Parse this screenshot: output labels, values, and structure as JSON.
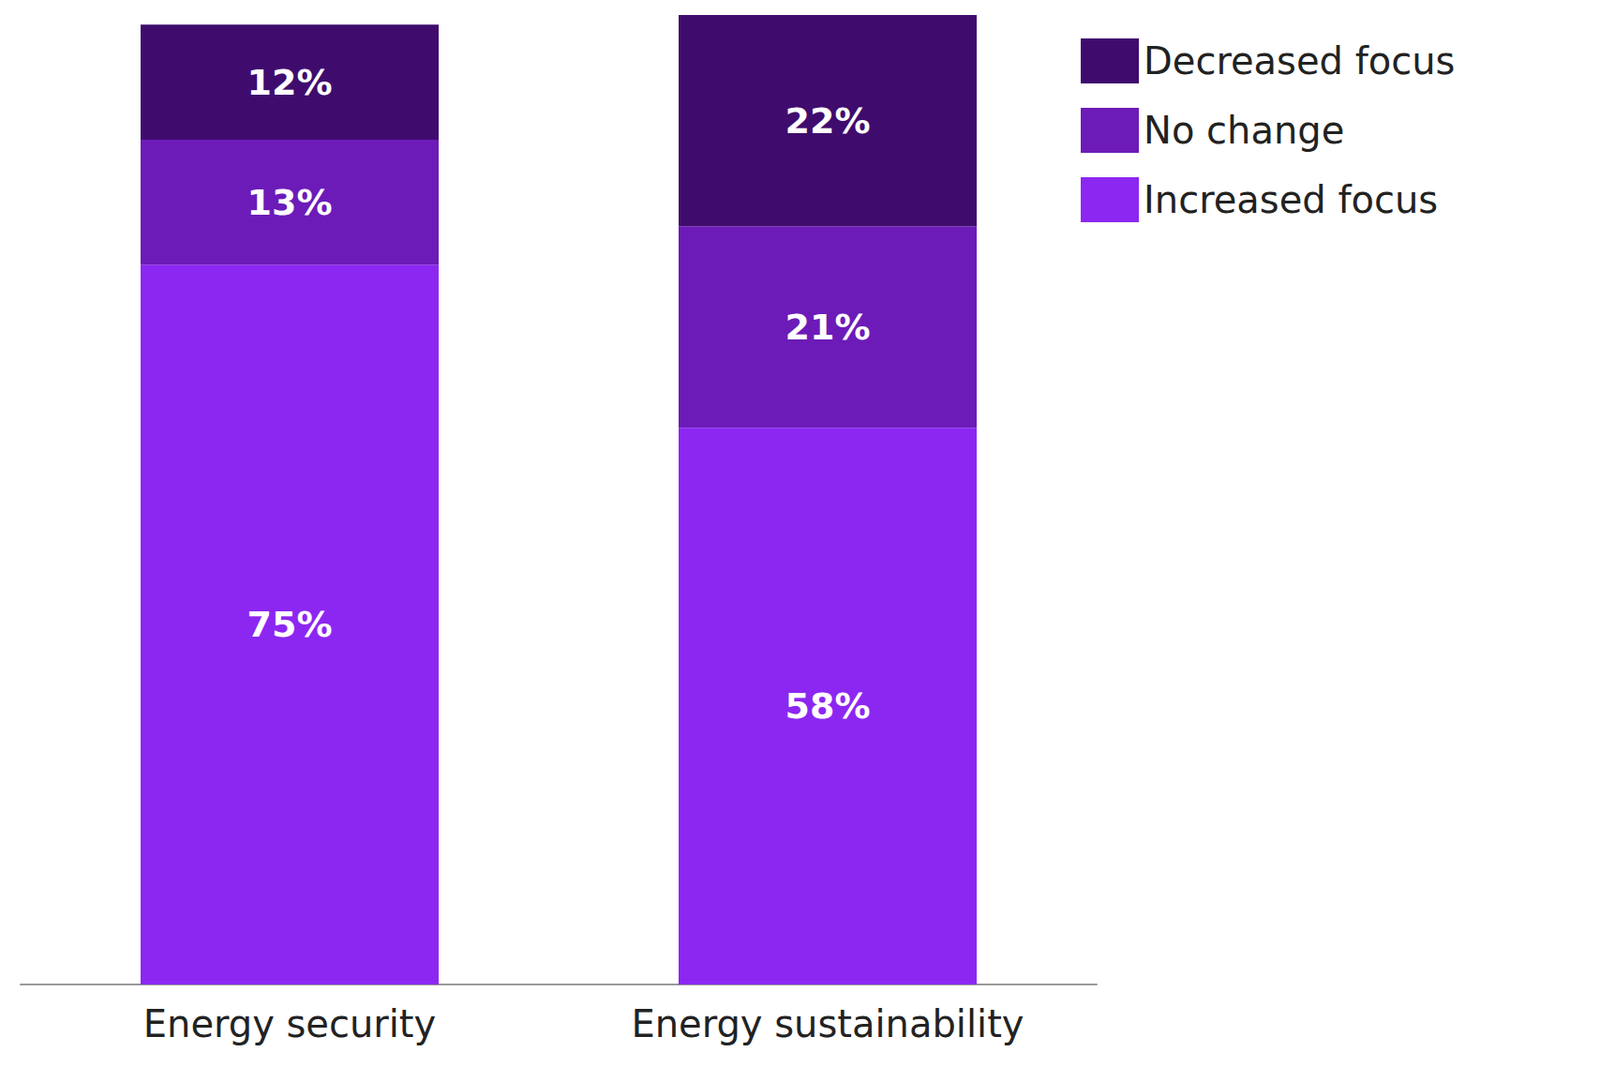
{
  "chart_data": {
    "type": "bar",
    "stacked": true,
    "data_labels": true,
    "tick_labels": "x",
    "legend": "top-right",
    "categories": [
      "Energy security",
      "Energy sustainability"
    ],
    "series": [
      {
        "name": "Increased focus",
        "color": "#8c27f2",
        "values": [
          75,
          58
        ],
        "value_labels": [
          "75%",
          "58%"
        ]
      },
      {
        "name": "No change",
        "color": "#6c1bb8",
        "values": [
          13,
          21
        ],
        "value_labels": [
          "13%",
          "21%"
        ]
      },
      {
        "name": "Decreased focus",
        "color": "#3f0c6e",
        "values": [
          12,
          22
        ],
        "value_labels": [
          "12%",
          "22%"
        ]
      }
    ]
  }
}
